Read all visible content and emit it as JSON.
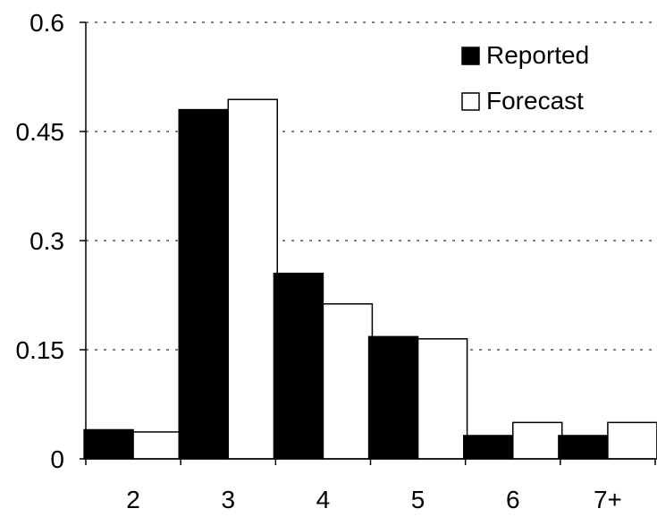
{
  "chart_data": {
    "type": "bar",
    "categories": [
      "2",
      "3",
      "4",
      "5",
      "6",
      "7+"
    ],
    "series": [
      {
        "name": "Reported",
        "values": [
          0.04,
          0.48,
          0.255,
          0.168,
          0.032,
          0.032
        ],
        "color": "#000000"
      },
      {
        "name": "Forecast",
        "values": [
          0.037,
          0.494,
          0.213,
          0.165,
          0.05,
          0.05
        ],
        "color": "#ffffff"
      }
    ],
    "ylim": [
      0,
      0.6
    ],
    "yticks": [
      0,
      0.15,
      0.3,
      0.45,
      0.6
    ],
    "ytick_labels": [
      "0",
      "0.15",
      "0.3",
      "0.45",
      "0.6"
    ],
    "grid": "horizontal dotted",
    "legend": "top-right",
    "title": "",
    "xlabel": "",
    "ylabel": ""
  }
}
